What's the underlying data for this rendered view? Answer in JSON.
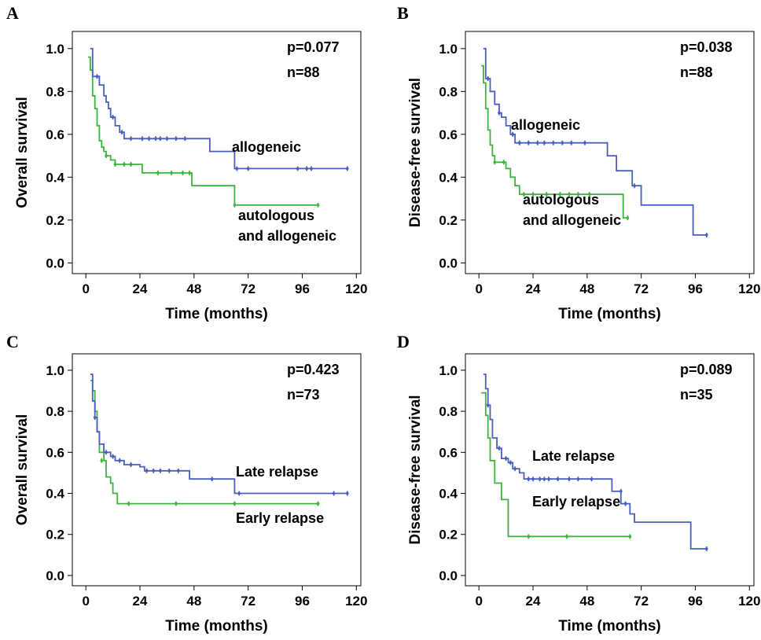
{
  "panels": [
    {
      "letter": "A",
      "ylabel": "Overall survival",
      "xlabel": "Time (months)",
      "p_text": "p=0.077",
      "n_text": "n=88",
      "annotations": [
        {
          "text": "allogeneic",
          "series": 0
        },
        {
          "text": "autologous",
          "series": 1
        },
        {
          "text": "and allogeneic",
          "series": 1
        }
      ]
    },
    {
      "letter": "B",
      "ylabel": "Disease-free survival",
      "xlabel": "Time (months)",
      "p_text": "p=0.038",
      "n_text": "n=88",
      "annotations": [
        {
          "text": "allogeneic",
          "series": 0
        },
        {
          "text": "autologous",
          "series": 1
        },
        {
          "text": "and allogeneic",
          "series": 1
        }
      ]
    },
    {
      "letter": "C",
      "ylabel": "Overall survival",
      "xlabel": "Time (months)",
      "p_text": "p=0.423",
      "n_text": "n=73",
      "annotations": [
        {
          "text": "Late relapse",
          "series": 0
        },
        {
          "text": "Early relapse",
          "series": 1
        }
      ]
    },
    {
      "letter": "D",
      "ylabel": "Disease-free survival",
      "xlabel": "Time (months)",
      "p_text": "p=0.089",
      "n_text": "n=35",
      "annotations": [
        {
          "text": "Late relapse",
          "series": 0
        },
        {
          "text": "Early relapse",
          "series": 1
        }
      ]
    }
  ],
  "colors": {
    "series_blue": "#4a5ec0",
    "series_green": "#3cb43c",
    "axis": "#000000"
  },
  "chart_data": [
    {
      "type": "line",
      "step": true,
      "title": "",
      "xlabel": "Time (months)",
      "ylabel": "Overall survival",
      "xlim": [
        -6,
        122
      ],
      "ylim": [
        -0.05,
        1.08
      ],
      "xticks": [
        0,
        24,
        48,
        72,
        96,
        120
      ],
      "yticks": [
        "0.0",
        "0.2",
        "0.4",
        "0.6",
        "0.8",
        "1.0"
      ],
      "series": [
        {
          "color": "#4a5ec0",
          "points": [
            [
              2,
              1.0
            ],
            [
              3,
              0.87
            ],
            [
              5,
              0.87
            ],
            [
              6,
              0.83
            ],
            [
              8,
              0.78
            ],
            [
              9,
              0.75
            ],
            [
              10,
              0.72
            ],
            [
              11,
              0.68
            ],
            [
              13,
              0.64
            ],
            [
              15,
              0.61
            ],
            [
              17,
              0.58
            ],
            [
              54,
              0.58
            ],
            [
              55,
              0.52
            ],
            [
              65,
              0.52
            ],
            [
              66,
              0.44
            ],
            [
              116,
              0.44
            ]
          ],
          "censored": [
            [
              5,
              0.87
            ],
            [
              12,
              0.68
            ],
            [
              16,
              0.61
            ],
            [
              20,
              0.58
            ],
            [
              25,
              0.58
            ],
            [
              28,
              0.58
            ],
            [
              31,
              0.58
            ],
            [
              33,
              0.58
            ],
            [
              36,
              0.58
            ],
            [
              40,
              0.58
            ],
            [
              44,
              0.58
            ],
            [
              67,
              0.44
            ],
            [
              72,
              0.44
            ],
            [
              94,
              0.44
            ],
            [
              98,
              0.44
            ],
            [
              100,
              0.44
            ],
            [
              116,
              0.44
            ]
          ]
        },
        {
          "color": "#3cb43c",
          "points": [
            [
              1,
              0.96
            ],
            [
              2,
              0.9
            ],
            [
              3,
              0.78
            ],
            [
              4,
              0.72
            ],
            [
              5,
              0.64
            ],
            [
              6,
              0.57
            ],
            [
              7,
              0.54
            ],
            [
              8,
              0.52
            ],
            [
              9,
              0.5
            ],
            [
              11,
              0.48
            ],
            [
              13,
              0.46
            ],
            [
              24,
              0.46
            ],
            [
              25,
              0.42
            ],
            [
              46,
              0.42
            ],
            [
              47,
              0.36
            ],
            [
              65,
              0.36
            ],
            [
              66,
              0.27
            ],
            [
              103,
              0.27
            ]
          ],
          "censored": [
            [
              9,
              0.5
            ],
            [
              13,
              0.46
            ],
            [
              17,
              0.46
            ],
            [
              20,
              0.46
            ],
            [
              32,
              0.42
            ],
            [
              38,
              0.42
            ],
            [
              43,
              0.42
            ],
            [
              46,
              0.42
            ],
            [
              66,
              0.27
            ],
            [
              103,
              0.27
            ]
          ]
        }
      ],
      "legend": "inline labels"
    },
    {
      "type": "line",
      "step": true,
      "title": "",
      "xlabel": "Time (months)",
      "ylabel": "Disease-free survival",
      "xlim": [
        -6,
        122
      ],
      "ylim": [
        -0.05,
        1.08
      ],
      "xticks": [
        0,
        24,
        48,
        72,
        96,
        120
      ],
      "yticks": [
        "0.0",
        "0.2",
        "0.4",
        "0.6",
        "0.8",
        "1.0"
      ],
      "series": [
        {
          "color": "#4a5ec0",
          "points": [
            [
              2,
              1.0
            ],
            [
              3,
              0.86
            ],
            [
              4,
              0.86
            ],
            [
              5,
              0.8
            ],
            [
              7,
              0.74
            ],
            [
              9,
              0.7
            ],
            [
              10,
              0.68
            ],
            [
              12,
              0.64
            ],
            [
              14,
              0.6
            ],
            [
              16,
              0.56
            ],
            [
              56,
              0.56
            ],
            [
              57,
              0.5
            ],
            [
              60,
              0.5
            ],
            [
              61,
              0.43
            ],
            [
              67,
              0.43
            ],
            [
              68,
              0.36
            ],
            [
              70,
              0.36
            ],
            [
              72,
              0.27
            ],
            [
              94,
              0.27
            ],
            [
              95,
              0.13
            ],
            [
              101,
              0.13
            ]
          ],
          "censored": [
            [
              4,
              0.86
            ],
            [
              9,
              0.7
            ],
            [
              15,
              0.6
            ],
            [
              18,
              0.56
            ],
            [
              22,
              0.56
            ],
            [
              26,
              0.56
            ],
            [
              29,
              0.56
            ],
            [
              33,
              0.56
            ],
            [
              37,
              0.56
            ],
            [
              41,
              0.56
            ],
            [
              47,
              0.56
            ],
            [
              69,
              0.36
            ],
            [
              101,
              0.13
            ]
          ]
        },
        {
          "color": "#3cb43c",
          "points": [
            [
              1,
              0.92
            ],
            [
              2,
              0.84
            ],
            [
              3,
              0.72
            ],
            [
              4,
              0.62
            ],
            [
              5,
              0.55
            ],
            [
              6,
              0.5
            ],
            [
              7,
              0.47
            ],
            [
              10,
              0.47
            ],
            [
              12,
              0.44
            ],
            [
              14,
              0.4
            ],
            [
              16,
              0.36
            ],
            [
              18,
              0.32
            ],
            [
              63,
              0.32
            ],
            [
              64,
              0.21
            ],
            [
              66,
              0.21
            ]
          ],
          "censored": [
            [
              7,
              0.47
            ],
            [
              11,
              0.47
            ],
            [
              20,
              0.32
            ],
            [
              24,
              0.32
            ],
            [
              30,
              0.32
            ],
            [
              36,
              0.32
            ],
            [
              40,
              0.32
            ],
            [
              44,
              0.32
            ],
            [
              49,
              0.32
            ],
            [
              66,
              0.21
            ]
          ]
        }
      ],
      "legend": "inline labels"
    },
    {
      "type": "line",
      "step": true,
      "title": "",
      "xlabel": "Time (months)",
      "ylabel": "Overall survival",
      "xlim": [
        -6,
        122
      ],
      "ylim": [
        -0.05,
        1.08
      ],
      "xticks": [
        0,
        24,
        48,
        72,
        96,
        120
      ],
      "yticks": [
        "0.0",
        "0.2",
        "0.4",
        "0.6",
        "0.8",
        "1.0"
      ],
      "series": [
        {
          "color": "#4a5ec0",
          "points": [
            [
              2,
              0.98
            ],
            [
              3,
              0.85
            ],
            [
              4,
              0.77
            ],
            [
              5,
              0.7
            ],
            [
              6,
              0.64
            ],
            [
              8,
              0.6
            ],
            [
              11,
              0.58
            ],
            [
              13,
              0.56
            ],
            [
              17,
              0.54
            ],
            [
              24,
              0.53
            ],
            [
              26,
              0.51
            ],
            [
              45,
              0.51
            ],
            [
              46,
              0.47
            ],
            [
              65,
              0.47
            ],
            [
              66,
              0.4
            ],
            [
              116,
              0.4
            ]
          ],
          "censored": [
            [
              4,
              0.77
            ],
            [
              9,
              0.6
            ],
            [
              12,
              0.58
            ],
            [
              15,
              0.56
            ],
            [
              20,
              0.54
            ],
            [
              27,
              0.51
            ],
            [
              30,
              0.51
            ],
            [
              33,
              0.51
            ],
            [
              37,
              0.51
            ],
            [
              41,
              0.51
            ],
            [
              56,
              0.47
            ],
            [
              68,
              0.4
            ],
            [
              110,
              0.4
            ],
            [
              116,
              0.4
            ]
          ]
        },
        {
          "color": "#3cb43c",
          "points": [
            [
              2,
              0.95
            ],
            [
              3,
              0.9
            ],
            [
              4,
              0.8
            ],
            [
              5,
              0.7
            ],
            [
              6,
              0.6
            ],
            [
              8,
              0.56
            ],
            [
              9,
              0.48
            ],
            [
              11,
              0.45
            ],
            [
              12,
              0.4
            ],
            [
              14,
              0.35
            ],
            [
              103,
              0.35
            ]
          ],
          "censored": [
            [
              7,
              0.56
            ],
            [
              19,
              0.35
            ],
            [
              40,
              0.35
            ],
            [
              66,
              0.35
            ],
            [
              103,
              0.35
            ]
          ]
        }
      ],
      "legend": "inline labels"
    },
    {
      "type": "line",
      "step": true,
      "title": "",
      "xlabel": "Time (months)",
      "ylabel": "Disease-free survival",
      "xlim": [
        -6,
        122
      ],
      "ylim": [
        -0.05,
        1.08
      ],
      "xticks": [
        0,
        24,
        48,
        72,
        96,
        120
      ],
      "yticks": [
        "0.0",
        "0.2",
        "0.4",
        "0.6",
        "0.8",
        "1.0"
      ],
      "series": [
        {
          "color": "#4a5ec0",
          "points": [
            [
              2,
              0.98
            ],
            [
              3,
              0.91
            ],
            [
              4,
              0.83
            ],
            [
              5,
              0.76
            ],
            [
              6,
              0.67
            ],
            [
              8,
              0.62
            ],
            [
              10,
              0.57
            ],
            [
              13,
              0.55
            ],
            [
              15,
              0.52
            ],
            [
              18,
              0.5
            ],
            [
              20,
              0.47
            ],
            [
              58,
              0.47
            ],
            [
              59,
              0.41
            ],
            [
              62,
              0.41
            ],
            [
              63,
              0.35
            ],
            [
              66,
              0.35
            ],
            [
              67,
              0.3
            ],
            [
              69,
              0.26
            ],
            [
              93,
              0.26
            ],
            [
              94,
              0.13
            ],
            [
              101,
              0.13
            ]
          ],
          "censored": [
            [
              4,
              0.83
            ],
            [
              9,
              0.62
            ],
            [
              12,
              0.57
            ],
            [
              14,
              0.55
            ],
            [
              16,
              0.52
            ],
            [
              22,
              0.47
            ],
            [
              24,
              0.47
            ],
            [
              27,
              0.47
            ],
            [
              29,
              0.47
            ],
            [
              31,
              0.47
            ],
            [
              35,
              0.47
            ],
            [
              40,
              0.47
            ],
            [
              44,
              0.47
            ],
            [
              50,
              0.47
            ],
            [
              63,
              0.41
            ],
            [
              65,
              0.35
            ],
            [
              101,
              0.13
            ]
          ]
        },
        {
          "color": "#3cb43c",
          "points": [
            [
              1,
              0.89
            ],
            [
              3,
              0.78
            ],
            [
              4,
              0.67
            ],
            [
              5,
              0.56
            ],
            [
              7,
              0.45
            ],
            [
              10,
              0.37
            ],
            [
              13,
              0.19
            ],
            [
              67,
              0.19
            ]
          ],
          "censored": [
            [
              22,
              0.19
            ],
            [
              39,
              0.19
            ],
            [
              67,
              0.19
            ]
          ]
        }
      ],
      "legend": "inline labels"
    }
  ]
}
